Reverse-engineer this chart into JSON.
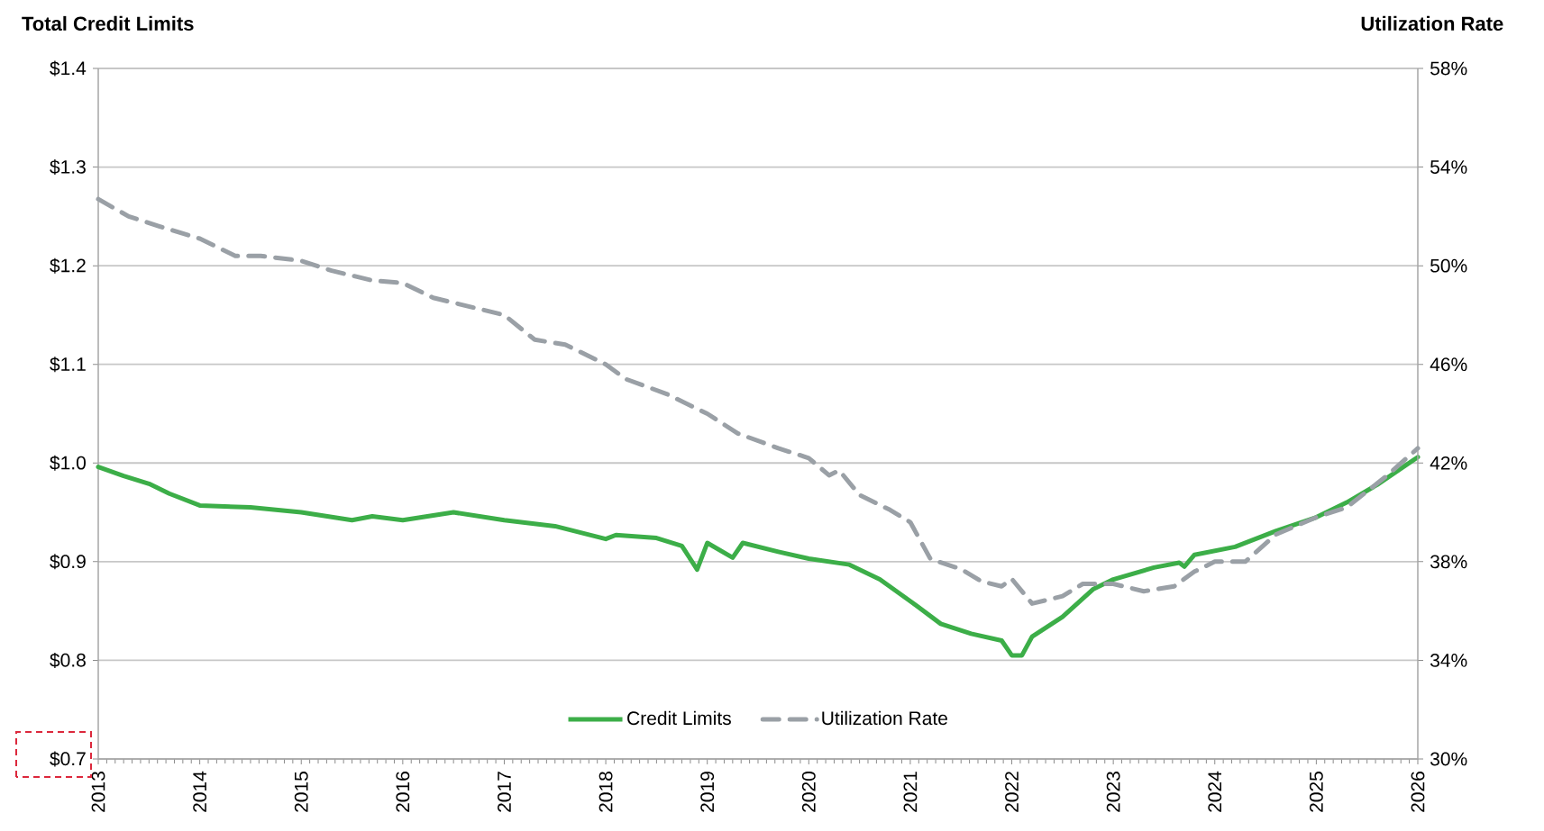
{
  "chart_data": {
    "type": "line",
    "ylabel": "Total Credit Limits",
    "y2label": "Utilization Rate",
    "x": [
      2013.0,
      2013.25,
      2013.5,
      2013.7,
      2014.0,
      2014.5,
      2015.0,
      2015.5,
      2015.7,
      2016.0,
      2016.5,
      2017.0,
      2017.5,
      2018.0,
      2018.1,
      2018.5,
      2018.75,
      2018.9,
      2019.0,
      2019.25,
      2019.35,
      2019.7,
      2020.0,
      2020.4,
      2020.7,
      2021.0,
      2021.3,
      2021.6,
      2021.9,
      2022.0,
      2022.1,
      2022.2,
      2022.5,
      2022.8,
      2023.0,
      2023.4,
      2023.65,
      2023.7,
      2023.8,
      2024.2,
      2024.6,
      2025.0,
      2025.3,
      2025.6,
      2026.0
    ],
    "series": [
      {
        "name": "Credit Limits",
        "color": "#3cae48",
        "line_style": "solid",
        "values": [
          0.996,
          0.987,
          0.979,
          0.969,
          0.957,
          0.955,
          0.95,
          0.942,
          0.946,
          0.942,
          0.95,
          0.942,
          0.936,
          0.923,
          0.927,
          0.924,
          0.916,
          0.892,
          0.919,
          0.904,
          0.919,
          0.91,
          0.903,
          0.897,
          0.882,
          0.86,
          0.837,
          0.827,
          0.82,
          0.805,
          0.805,
          0.824,
          0.844,
          0.872,
          0.882,
          0.894,
          0.899,
          0.895,
          0.907,
          0.915,
          0.931,
          0.945,
          0.96,
          0.978,
          1.006
        ]
      },
      {
        "name": "Utilization Rate",
        "color": "#9aa0a6",
        "line_style": "dashed",
        "axis": "y2",
        "x": [
          2013.0,
          2013.3,
          2013.6,
          2014.0,
          2014.35,
          2014.6,
          2015.0,
          2015.3,
          2015.7,
          2016.0,
          2016.3,
          2016.7,
          2017.0,
          2017.3,
          2017.6,
          2018.0,
          2018.2,
          2018.6,
          2019.0,
          2019.3,
          2019.7,
          2020.0,
          2020.2,
          2020.3,
          2020.5,
          2020.8,
          2021.0,
          2021.2,
          2021.5,
          2021.7,
          2021.9,
          2022.0,
          2022.2,
          2022.5,
          2022.7,
          2023.0,
          2023.3,
          2023.6,
          2023.8,
          2024.0,
          2024.3,
          2024.6,
          2025.0,
          2025.3,
          2025.7,
          2026.0
        ],
        "values": [
          52.7,
          52.0,
          51.6,
          51.1,
          50.4,
          50.4,
          50.2,
          49.8,
          49.4,
          49.3,
          48.7,
          48.3,
          48.0,
          47.0,
          46.8,
          46.0,
          45.4,
          44.8,
          44.0,
          43.2,
          42.6,
          42.2,
          41.5,
          41.7,
          40.7,
          40.1,
          39.6,
          38.1,
          37.7,
          37.2,
          37.0,
          37.3,
          36.3,
          36.6,
          37.1,
          37.1,
          36.8,
          37.0,
          37.6,
          38.0,
          38.0,
          39.1,
          39.8,
          40.2,
          41.5,
          42.6
        ]
      }
    ],
    "xlim": [
      2013,
      2026
    ],
    "xticks": [
      2013,
      2014,
      2015,
      2016,
      2017,
      2018,
      2019,
      2020,
      2021,
      2022,
      2023,
      2024,
      2025,
      2026
    ],
    "ylim": [
      0.7,
      1.4
    ],
    "yticks": [
      {
        "value": 0.7,
        "label": "$0.7"
      },
      {
        "value": 0.8,
        "label": "$0.8"
      },
      {
        "value": 0.9,
        "label": "$0.9"
      },
      {
        "value": 1.0,
        "label": "$1.0"
      },
      {
        "value": 1.1,
        "label": "$1.1"
      },
      {
        "value": 1.2,
        "label": "$1.2"
      },
      {
        "value": 1.3,
        "label": "$1.3"
      },
      {
        "value": 1.4,
        "label": "$1.4"
      }
    ],
    "y2lim": [
      30,
      58
    ],
    "y2ticks": [
      {
        "value": 30,
        "label": "30%"
      },
      {
        "value": 34,
        "label": "34%"
      },
      {
        "value": 38,
        "label": "38%"
      },
      {
        "value": 42,
        "label": "42%"
      },
      {
        "value": 46,
        "label": "46%"
      },
      {
        "value": 50,
        "label": "50%"
      },
      {
        "value": 54,
        "label": "54%"
      },
      {
        "value": 58,
        "label": "58%"
      }
    ],
    "grid": "y",
    "legend": "bottom"
  }
}
